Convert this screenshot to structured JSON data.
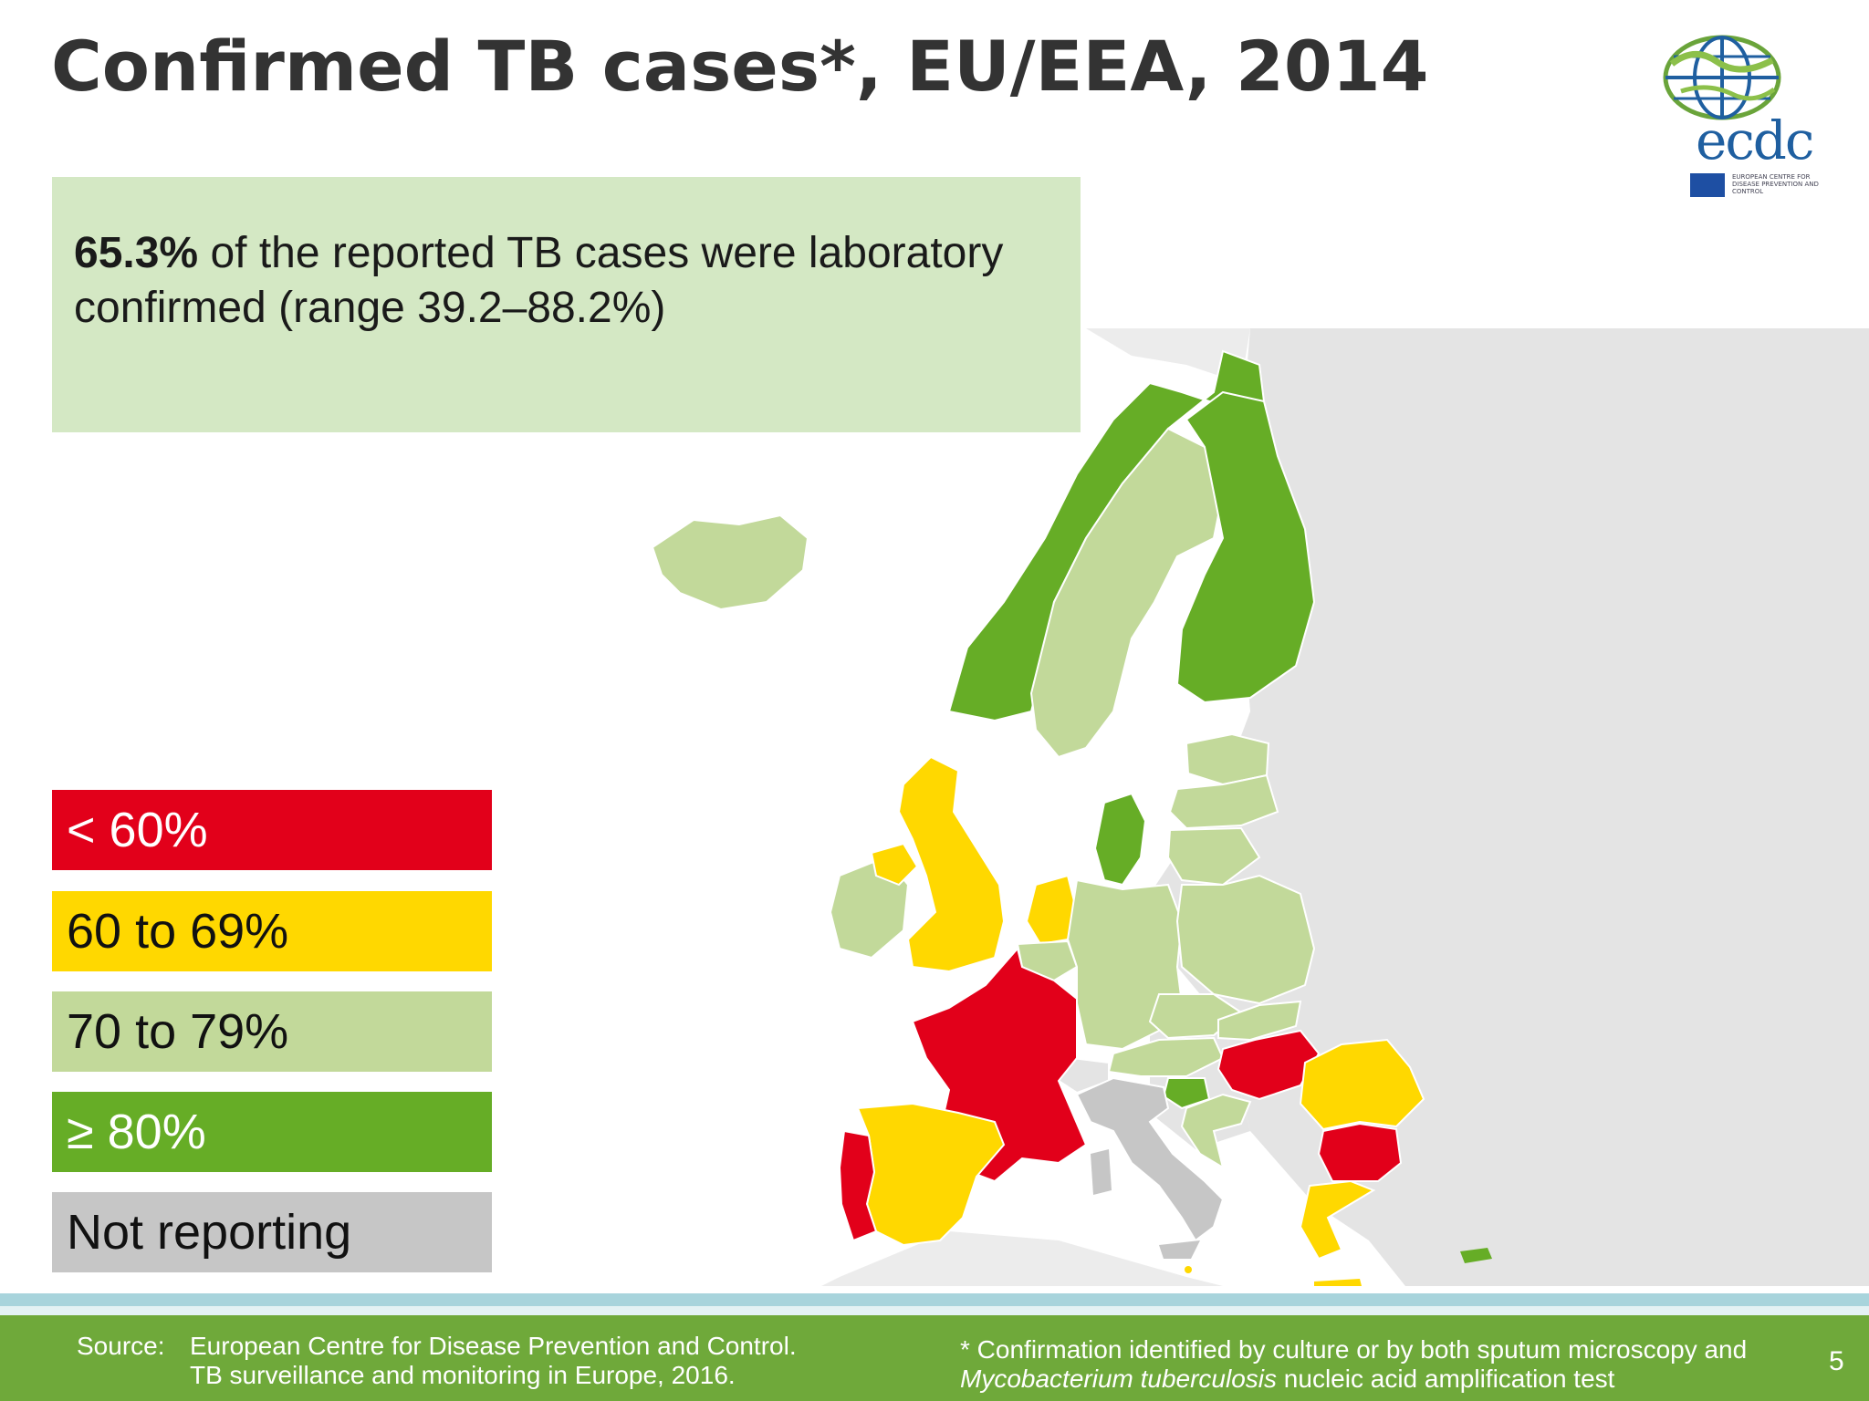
{
  "slide": {
    "title": "Confirmed TB cases*, EU/EEA, 2014",
    "page_number": "5"
  },
  "logo": {
    "text": "ecdc",
    "subtext": "EUROPEAN CENTRE FOR DISEASE PREVENTION AND CONTROL"
  },
  "callout": {
    "highlight": "65.3%",
    "text": " of the reported TB cases were laboratory confirmed (range 39.2–88.2%)"
  },
  "legend": [
    {
      "label": "< 60%",
      "color": "#e2001a",
      "text_color": "#ffffff"
    },
    {
      "label": "60 to 69%",
      "color": "#ffd800",
      "text_color": "#111111"
    },
    {
      "label": "70 to 79%",
      "color": "#c2d99a",
      "text_color": "#111111"
    },
    {
      "label": "≥ 80%",
      "color": "#66ad26",
      "text_color": "#ffffff"
    },
    {
      "label": "Not reporting",
      "color": "#c6c6c6",
      "text_color": "#111111"
    }
  ],
  "map": {
    "background_land_color": "#e4e4e4",
    "country_categories": {
      "Iceland": "70 to 79%",
      "Norway": "≥ 80%",
      "Sweden": "70 to 79%",
      "Finland": "≥ 80%",
      "Estonia": "70 to 79%",
      "Latvia": "70 to 79%",
      "Lithuania": "70 to 79%",
      "Denmark": "≥ 80%",
      "Ireland": "70 to 79%",
      "Northern Ireland": "60 to 69%",
      "United Kingdom": "60 to 69%",
      "Netherlands": "60 to 69%",
      "Belgium": "70 to 79%",
      "Germany": "70 to 79%",
      "Poland": "70 to 79%",
      "Czech Republic": "70 to 79%",
      "Slovakia": "70 to 79%",
      "Austria": "70 to 79%",
      "France": "< 60%",
      "Hungary": "< 60%",
      "Slovenia": "≥ 80%",
      "Croatia": "70 to 79%",
      "Romania": "60 to 69%",
      "Bulgaria": "< 60%",
      "Greece": "60 to 69%",
      "Spain": "60 to 69%",
      "Portugal": "< 60%",
      "Italy": "Not reporting",
      "Cyprus": "≥ 80%",
      "Malta": "60 to 69%"
    }
  },
  "footer": {
    "source_label": "Source:",
    "source_line1": "European Centre for Disease Prevention and Control.",
    "source_line2": "TB surveillance and monitoring in Europe, 2016.",
    "note_prefix": "*  Confirmation identified by culture or by both sputum microscopy and",
    "note_italic": "Mycobacterium tuberculosis",
    "note_suffix": " nucleic acid amplification test"
  }
}
